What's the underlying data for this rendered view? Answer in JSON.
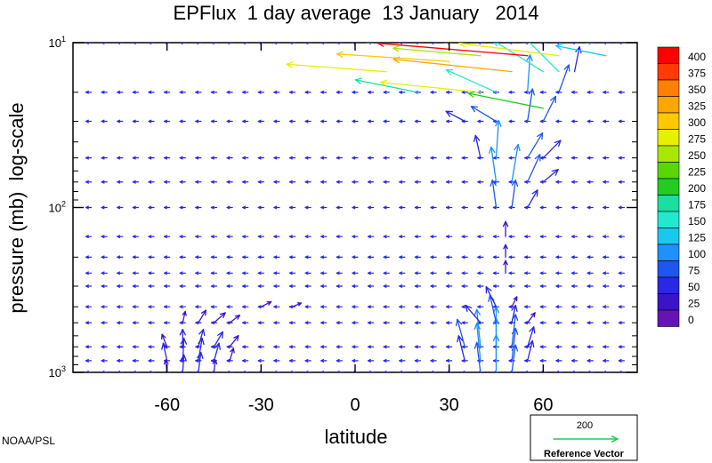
{
  "chart_data": {
    "type": "vector-field",
    "title": "EPFlux  1 day average  13 January   2014",
    "xlabel": "latitude",
    "ylabel": "pressure (mb)  log-scale",
    "x_ticks": [
      "-60",
      "-30",
      "0",
      "30",
      "60"
    ],
    "x_tick_values": [
      -60,
      -30,
      0,
      30,
      60
    ],
    "xlim": [
      -90,
      90
    ],
    "ylim": [
      1000,
      10
    ],
    "y_scale": "log",
    "y_ticks": [
      {
        "base": "10",
        "exp": "1",
        "value": 10
      },
      {
        "base": "10",
        "exp": "2",
        "value": 100
      },
      {
        "base": "10",
        "exp": "3",
        "value": 1000
      }
    ],
    "pressure_levels": [
      1000,
      850,
      700,
      500,
      400,
      300,
      250,
      200,
      150,
      100,
      70,
      50,
      30,
      20,
      10
    ],
    "colorbar": {
      "labels": [
        "400",
        "375",
        "350",
        "325",
        "300",
        "275",
        "250",
        "225",
        "200",
        "175",
        "150",
        "125",
        "100",
        "75",
        "50",
        "25",
        "0"
      ],
      "colors": [
        "#ff0000",
        "#ff3b00",
        "#ff7f00",
        "#ffa500",
        "#ffc800",
        "#e6f000",
        "#a8e800",
        "#5ad600",
        "#22cc22",
        "#19e0a0",
        "#22e8d0",
        "#19c8ee",
        "#1e90ff",
        "#1e56f0",
        "#2828e6",
        "#3c14c8",
        "#6414b4"
      ]
    },
    "reference_vector": {
      "value": "200",
      "label": "Reference Vector",
      "color": "#22cc55"
    },
    "credit": "NOAA/PSL",
    "vectors": [
      {
        "lat": -60,
        "p": 1000,
        "u": -1,
        "v": 10
      },
      {
        "lat": -55,
        "p": 1000,
        "u": 1,
        "v": 14
      },
      {
        "lat": -50,
        "p": 1000,
        "u": 2,
        "v": 16
      },
      {
        "lat": -45,
        "p": 1000,
        "u": 1,
        "v": 10
      },
      {
        "lat": -60,
        "p": 850,
        "u": -3,
        "v": 14
      },
      {
        "lat": -55,
        "p": 850,
        "u": 1,
        "v": 18
      },
      {
        "lat": -50,
        "p": 850,
        "u": 3,
        "v": 18
      },
      {
        "lat": -45,
        "p": 850,
        "u": 4,
        "v": 14
      },
      {
        "lat": -40,
        "p": 850,
        "u": 3,
        "v": 10
      },
      {
        "lat": -60,
        "p": 700,
        "u": -4,
        "v": 10
      },
      {
        "lat": -55,
        "p": 700,
        "u": 0,
        "v": 14
      },
      {
        "lat": -50,
        "p": 700,
        "u": 4,
        "v": 14
      },
      {
        "lat": -45,
        "p": 700,
        "u": 7,
        "v": 12
      },
      {
        "lat": -40,
        "p": 700,
        "u": 7,
        "v": 9
      },
      {
        "lat": -55,
        "p": 500,
        "u": 2,
        "v": 9
      },
      {
        "lat": -50,
        "p": 500,
        "u": 6,
        "v": 10
      },
      {
        "lat": -45,
        "p": 500,
        "u": 9,
        "v": 8
      },
      {
        "lat": -40,
        "p": 500,
        "u": 8,
        "v": 6
      },
      {
        "lat": -30,
        "p": 400,
        "u": 8,
        "v": 4
      },
      {
        "lat": -20,
        "p": 400,
        "u": 7,
        "v": 3
      },
      {
        "lat": 40,
        "p": 1000,
        "u": -3,
        "v": 24
      },
      {
        "lat": 45,
        "p": 1000,
        "u": 0,
        "v": 30
      },
      {
        "lat": 50,
        "p": 1000,
        "u": 3,
        "v": 22
      },
      {
        "lat": 35,
        "p": 850,
        "u": -5,
        "v": 20
      },
      {
        "lat": 40,
        "p": 850,
        "u": -3,
        "v": 30
      },
      {
        "lat": 45,
        "p": 850,
        "u": 0,
        "v": 34
      },
      {
        "lat": 50,
        "p": 850,
        "u": 3,
        "v": 26
      },
      {
        "lat": 55,
        "p": 850,
        "u": 4,
        "v": 16
      },
      {
        "lat": 35,
        "p": 700,
        "u": -6,
        "v": 22
      },
      {
        "lat": 40,
        "p": 700,
        "u": -3,
        "v": 30
      },
      {
        "lat": 45,
        "p": 700,
        "u": 0,
        "v": 32
      },
      {
        "lat": 50,
        "p": 700,
        "u": 3,
        "v": 26
      },
      {
        "lat": 55,
        "p": 700,
        "u": 5,
        "v": 16
      },
      {
        "lat": 40,
        "p": 500,
        "u": -12,
        "v": 14
      },
      {
        "lat": 45,
        "p": 500,
        "u": -5,
        "v": 22
      },
      {
        "lat": 50,
        "p": 500,
        "u": 3,
        "v": 14
      },
      {
        "lat": 55,
        "p": 500,
        "u": 6,
        "v": 8
      },
      {
        "lat": 45,
        "p": 400,
        "u": -8,
        "v": 16
      },
      {
        "lat": 50,
        "p": 400,
        "u": 4,
        "v": 8
      },
      {
        "lat": 48,
        "p": 250,
        "u": 0,
        "v": 10
      },
      {
        "lat": 48,
        "p": 200,
        "u": 0,
        "v": 10
      },
      {
        "lat": 48,
        "p": 150,
        "u": 0,
        "v": 12
      },
      {
        "lat": 45,
        "p": 100,
        "u": -3,
        "v": 22
      },
      {
        "lat": 50,
        "p": 100,
        "u": 3,
        "v": 22
      },
      {
        "lat": 55,
        "p": 100,
        "u": 8,
        "v": 14
      },
      {
        "lat": 45,
        "p": 70,
        "u": -4,
        "v": 28
      },
      {
        "lat": 50,
        "p": 70,
        "u": 5,
        "v": 30
      },
      {
        "lat": 55,
        "p": 70,
        "u": 10,
        "v": 22
      },
      {
        "lat": 60,
        "p": 70,
        "u": 12,
        "v": 10
      },
      {
        "lat": 40,
        "p": 50,
        "u": -4,
        "v": 18
      },
      {
        "lat": 45,
        "p": 50,
        "u": 2,
        "v": 30
      },
      {
        "lat": 55,
        "p": 50,
        "u": 12,
        "v": 20
      },
      {
        "lat": 60,
        "p": 50,
        "u": 14,
        "v": 14
      },
      {
        "lat": 35,
        "p": 30,
        "u": -15,
        "v": 8
      },
      {
        "lat": 45,
        "p": 30,
        "u": -20,
        "v": 12
      },
      {
        "lat": 55,
        "p": 30,
        "u": 4,
        "v": 26
      },
      {
        "lat": 60,
        "p": 30,
        "u": 10,
        "v": 20
      },
      {
        "lat": 20,
        "p": 20,
        "u": -50,
        "v": 10
      },
      {
        "lat": 45,
        "p": 20,
        "u": -40,
        "v": 18
      },
      {
        "lat": 55,
        "p": 20,
        "u": 2,
        "v": 30
      },
      {
        "lat": 65,
        "p": 20,
        "u": 8,
        "v": 22
      },
      {
        "lat": 10,
        "p": 15,
        "u": -80,
        "v": 6
      },
      {
        "lat": 50,
        "p": 15,
        "u": -95,
        "v": 10
      },
      {
        "lat": 60,
        "p": 15,
        "u": -40,
        "v": 25
      },
      {
        "lat": 65,
        "p": 15,
        "u": -30,
        "v": 30
      },
      {
        "lat": 70,
        "p": 15,
        "u": 4,
        "v": 20
      },
      {
        "lat": 30,
        "p": 10,
        "u": -100,
        "v": 8
      },
      {
        "lat": 55,
        "p": 10,
        "u": -110,
        "v": 8
      },
      {
        "lat": 75,
        "p": 10,
        "u": -60,
        "v": 6
      },
      {
        "lat": 5,
        "p": 10,
        "u": -40,
        "v": 4
      },
      {
        "lat": 30,
        "p": 13,
        "u": -90,
        "v": 6
      },
      {
        "lat": 55,
        "p": 12,
        "u": -120,
        "v": 10
      },
      {
        "lat": 40,
        "p": 20,
        "u": -80,
        "v": 8
      },
      {
        "lat": 60,
        "p": 25,
        "u": -60,
        "v": 12
      },
      {
        "lat": 40,
        "p": 12,
        "u": -70,
        "v": 6
      },
      {
        "lat": 65,
        "p": 12,
        "u": -80,
        "v": 10
      },
      {
        "lat": 80,
        "p": 12,
        "u": -40,
        "v": 8
      }
    ]
  }
}
